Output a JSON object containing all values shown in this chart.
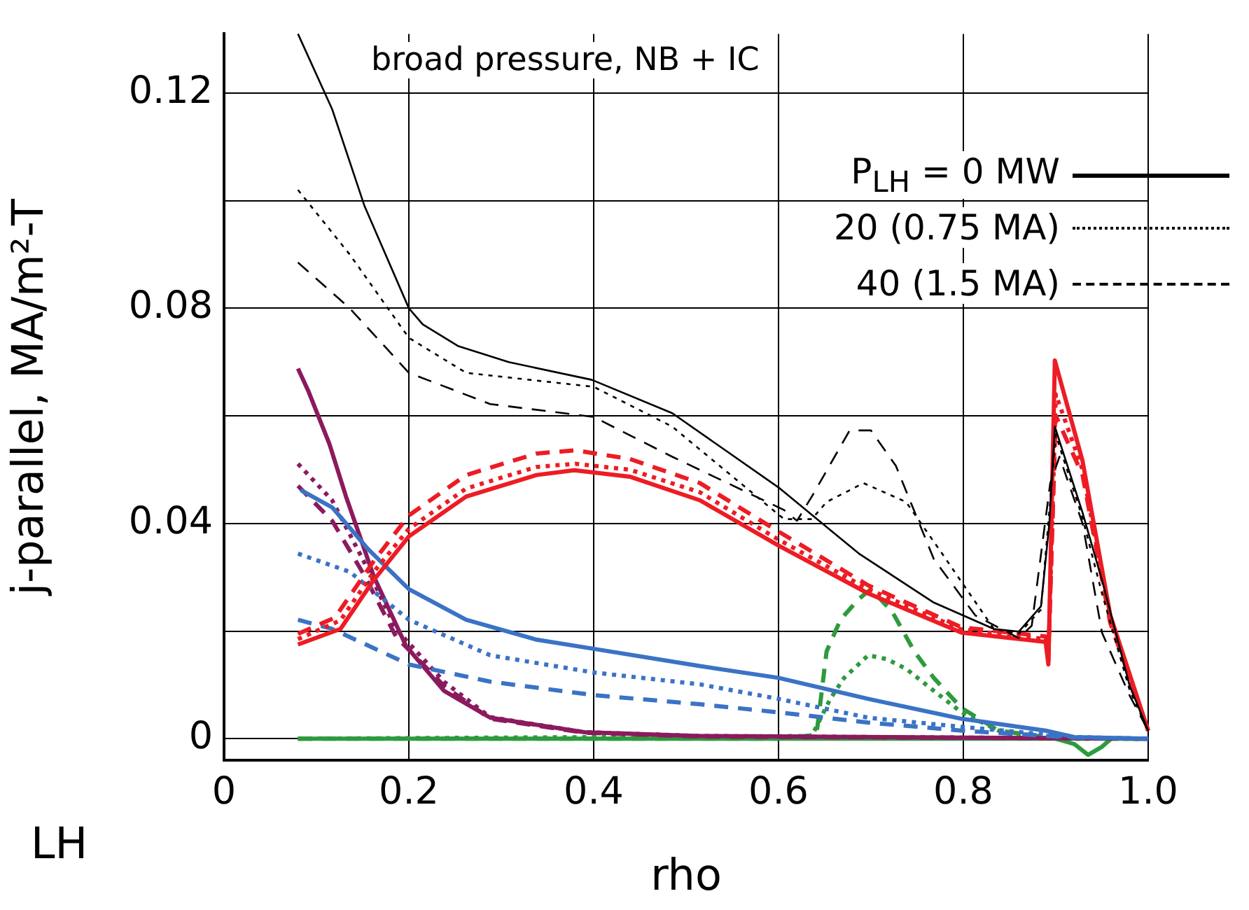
{
  "chart_data": {
    "type": "line",
    "title": "broad pressure, NB + IC",
    "xlabel": "rho",
    "ylabel": "j-parallel, MA/m²-T",
    "xlim": [
      0,
      1
    ],
    "xticks": [
      0,
      0.2,
      0.4,
      0.6,
      0.8,
      {
        "value": 1,
        "label": "1.0"
      }
    ],
    "ylim": [
      -0.004,
      0.131
    ],
    "yticks": [
      0,
      {
        "value": 0.02,
        "label": null
      },
      0.04,
      {
        "value": 0.06,
        "label": null
      },
      0.08,
      {
        "value": 0.1,
        "label": null
      },
      0.12
    ],
    "grid": true,
    "legend": "top right",
    "annotations": [
      "LH"
    ],
    "series": [
      {
        "name": "P$_{LH}$ = 0 MW",
        "color": "#000000",
        "line_style": "solid",
        "x": [
          0.08,
          0.117,
          0.152,
          0.2,
          0.215,
          0.253,
          0.308,
          0.398,
          0.485,
          0.6,
          0.687,
          0.768,
          0.833,
          0.86,
          0.884,
          0.893,
          0.899,
          0.929,
          0.95,
          0.98,
          1.0
        ],
        "values": [
          0.131,
          0.117,
          0.099,
          0.08,
          0.077,
          0.073,
          0.07,
          0.0667,
          0.0605,
          0.0467,
          0.0344,
          0.0253,
          0.0204,
          0.0199,
          0.0246,
          0.04,
          0.058,
          0.042,
          0.0295,
          0.0098,
          0.0015
        ]
      },
      {
        "name": "20 (0.75 MA)",
        "color": "#000000",
        "line_style": "dotted",
        "x": [
          0.08,
          0.136,
          0.2,
          0.262,
          0.4,
          0.485,
          0.606,
          0.636,
          0.652,
          0.692,
          0.738,
          0.777,
          0.833,
          0.86,
          0.884,
          0.9,
          0.929,
          0.95,
          0.98,
          1.0
        ],
        "values": [
          0.102,
          0.09,
          0.0745,
          0.068,
          0.0654,
          0.058,
          0.0408,
          0.0408,
          0.044,
          0.0475,
          0.044,
          0.0344,
          0.0204,
          0.0195,
          0.024,
          0.0565,
          0.041,
          0.027,
          0.009,
          0.0015
        ]
      },
      {
        "name": "40 (1.5 MA)",
        "color": "#000000",
        "line_style": "dashed",
        "x": [
          0.08,
          0.136,
          0.2,
          0.288,
          0.4,
          0.485,
          0.606,
          0.62,
          0.636,
          0.677,
          0.7,
          0.727,
          0.768,
          0.813,
          0.86,
          0.874,
          0.894,
          0.904,
          0.929,
          0.95,
          0.98,
          1.0
        ],
        "values": [
          0.0885,
          0.08,
          0.068,
          0.0622,
          0.0598,
          0.0524,
          0.0425,
          0.0405,
          0.045,
          0.0573,
          0.0573,
          0.0507,
          0.0334,
          0.0229,
          0.0187,
          0.021,
          0.0475,
          0.0524,
          0.04,
          0.0197,
          0.008,
          0.0015
        ]
      },
      {
        "color": "#ed1c24",
        "line_style": "solid",
        "x": [
          0.08,
          0.126,
          0.162,
          0.2,
          0.262,
          0.338,
          0.379,
          0.439,
          0.515,
          0.6,
          0.697,
          0.798,
          0.889,
          0.892,
          0.899,
          0.929,
          0.959,
          1.0
        ],
        "values": [
          0.0175,
          0.0204,
          0.0295,
          0.0376,
          0.045,
          0.049,
          0.0499,
          0.0487,
          0.0443,
          0.0359,
          0.027,
          0.0197,
          0.018,
          0.0138,
          0.0703,
          0.0516,
          0.0229,
          0.0015
        ]
      },
      {
        "color": "#ed1c24",
        "line_style": "dotted",
        "x": [
          0.08,
          0.126,
          0.162,
          0.2,
          0.262,
          0.338,
          0.38,
          0.439,
          0.515,
          0.6,
          0.697,
          0.798,
          0.889,
          0.892,
          0.9,
          0.929,
          0.959,
          1.0
        ],
        "values": [
          0.0185,
          0.022,
          0.031,
          0.039,
          0.0465,
          0.0505,
          0.0511,
          0.05,
          0.0458,
          0.037,
          0.0278,
          0.0203,
          0.0185,
          0.0145,
          0.064,
          0.05,
          0.022,
          0.0015
        ]
      },
      {
        "color": "#ed1c24",
        "line_style": "dashed",
        "x": [
          0.08,
          0.12,
          0.162,
          0.2,
          0.262,
          0.338,
          0.38,
          0.439,
          0.515,
          0.6,
          0.697,
          0.798,
          0.889,
          0.892,
          0.9,
          0.929,
          0.959,
          1.0
        ],
        "values": [
          0.0195,
          0.0225,
          0.033,
          0.0415,
          0.049,
          0.053,
          0.0536,
          0.052,
          0.0475,
          0.0385,
          0.0285,
          0.0207,
          0.019,
          0.015,
          0.06,
          0.049,
          0.0215,
          0.0015
        ]
      },
      {
        "color": "#3a73c6",
        "line_style": "solid",
        "x": [
          0.083,
          0.117,
          0.156,
          0.2,
          0.262,
          0.338,
          0.4,
          0.515,
          0.6,
          0.697,
          0.798,
          0.889,
          0.92,
          1.0
        ],
        "values": [
          0.0462,
          0.043,
          0.0352,
          0.0278,
          0.0221,
          0.0184,
          0.0167,
          0.0135,
          0.0113,
          0.0074,
          0.0037,
          0.0015,
          0.0003,
          0
        ]
      },
      {
        "color": "#3a73c6",
        "line_style": "dotted",
        "x": [
          0.08,
          0.136,
          0.2,
          0.288,
          0.4,
          0.515,
          0.6,
          0.697,
          0.798,
          0.92,
          1.0
        ],
        "values": [
          0.0344,
          0.031,
          0.0221,
          0.0155,
          0.0123,
          0.0101,
          0.0074,
          0.0039,
          0.0022,
          0.0003,
          0
        ]
      },
      {
        "color": "#3a73c6",
        "line_style": "dashed",
        "x": [
          0.08,
          0.117,
          0.2,
          0.288,
          0.4,
          0.515,
          0.6,
          0.697,
          0.798,
          0.92,
          1.0
        ],
        "values": [
          0.0221,
          0.0204,
          0.0138,
          0.0106,
          0.0081,
          0.0064,
          0.0049,
          0.003,
          0.0015,
          0.0002,
          0
        ]
      },
      {
        "color": "#8b1a5e",
        "line_style": "solid",
        "x": [
          0.08,
          0.091,
          0.114,
          0.132,
          0.162,
          0.197,
          0.238,
          0.288,
          0.39,
          0.515,
          0.8,
          1.0
        ],
        "values": [
          0.0688,
          0.0647,
          0.0548,
          0.045,
          0.0302,
          0.0172,
          0.0089,
          0.0039,
          0.0012,
          0.0005,
          0.0002,
          0
        ]
      },
      {
        "color": "#8b1a5e",
        "line_style": "dotted",
        "x": [
          0.08,
          0.117,
          0.152,
          0.186,
          0.238,
          0.288,
          0.39,
          0.515,
          1.0
        ],
        "values": [
          0.0511,
          0.0443,
          0.0327,
          0.0204,
          0.0106,
          0.004,
          0.0012,
          0.0005,
          0
        ]
      },
      {
        "color": "#8b1a5e",
        "line_style": "dashed",
        "x": [
          0.08,
          0.117,
          0.152,
          0.186,
          0.238,
          0.288,
          0.39,
          0.515,
          1.0
        ],
        "values": [
          0.047,
          0.0405,
          0.0303,
          0.019,
          0.0098,
          0.0037,
          0.0011,
          0.0004,
          0
        ]
      },
      {
        "color": "#2e9a3e",
        "line_style": "solid",
        "x": [
          0.08,
          0.9,
          0.92,
          0.935,
          0.95,
          0.96,
          1.0
        ],
        "values": [
          0,
          0,
          -0.001,
          -0.003,
          -0.0015,
          0,
          0
        ]
      },
      {
        "color": "#2e9a3e",
        "line_style": "dotted",
        "x": [
          0.08,
          0.636,
          0.656,
          0.671,
          0.697,
          0.717,
          0.738,
          0.768,
          0.798,
          0.838,
          0.9,
          1.0
        ],
        "values": [
          0,
          0.0005,
          0.0074,
          0.0113,
          0.0155,
          0.0148,
          0.013,
          0.0089,
          0.0049,
          0.0015,
          0,
          0
        ]
      },
      {
        "color": "#2e9a3e",
        "line_style": "dashed",
        "x": [
          0.08,
          0.6,
          0.641,
          0.652,
          0.667,
          0.687,
          0.7,
          0.723,
          0.747,
          0.768,
          0.798,
          0.838,
          0.9,
          1.0
        ],
        "values": [
          0,
          0,
          0.0007,
          0.0162,
          0.0221,
          0.026,
          0.0278,
          0.0236,
          0.0162,
          0.0113,
          0.0057,
          0.0015,
          0,
          0
        ]
      }
    ]
  }
}
